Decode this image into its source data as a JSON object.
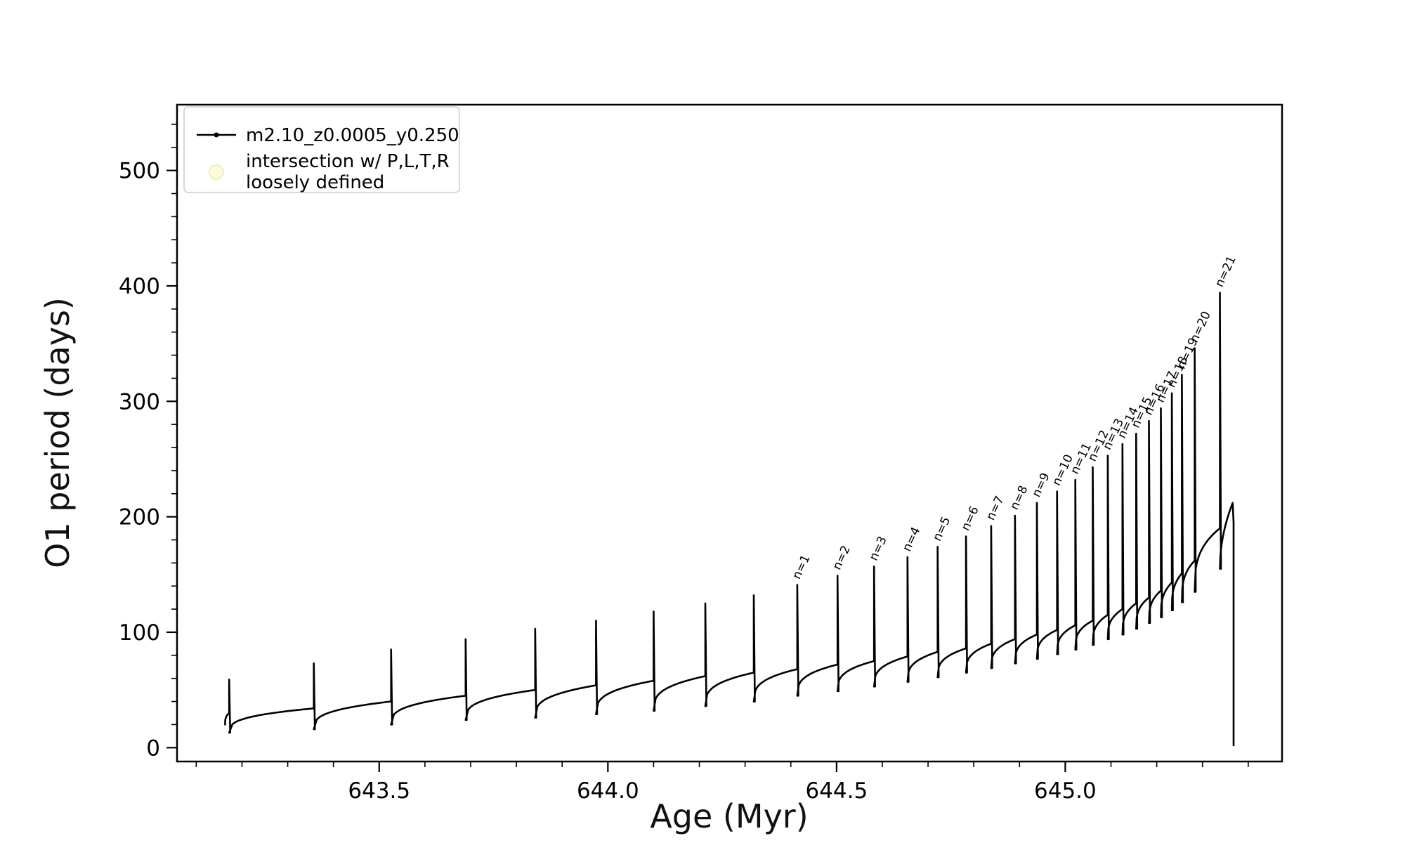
{
  "figure": {
    "background": "#ffffff"
  },
  "chart_data": {
    "type": "line",
    "title": "",
    "xlabel": "Age (Myr)",
    "ylabel": "O1 period (days)",
    "xlim": [
      643.058,
      645.474
    ],
    "ylim": [
      -12,
      557
    ],
    "grid": false,
    "xticks": {
      "major": [
        643.5,
        644.0,
        644.5,
        645.0
      ],
      "labels": [
        "643.5",
        "644.0",
        "644.5",
        "645.0"
      ],
      "minor_step": 0.1
    },
    "yticks": {
      "major": [
        0,
        100,
        200,
        300,
        400,
        500
      ],
      "labels": [
        "0",
        "100",
        "200",
        "300",
        "400",
        "500"
      ],
      "minor_step": 20
    },
    "legend": {
      "position": "upper-left",
      "entries": [
        {
          "label": "m2.10_z0.0005_y0.250",
          "marker": "line-dot",
          "color": "#000000"
        },
        {
          "label_line1": "intersection w/ P,L,T,R",
          "label_line2": "loosely defined",
          "marker": "circle",
          "color": "#fbfbd0"
        }
      ]
    },
    "annotation_rotation_deg": -65,
    "series": [
      {
        "name": "m2.10_z0.0005_y0.250",
        "color": "#000000",
        "style": "line-with-dot-markers",
        "cycles": [
          {
            "start": 643.163,
            "end": 643.172,
            "dip": 20,
            "base": 30,
            "peak": 59,
            "label": ""
          },
          {
            "start": 643.172,
            "end": 643.357,
            "dip": 13,
            "base": 34,
            "peak": 73,
            "label": ""
          },
          {
            "start": 643.357,
            "end": 643.526,
            "dip": 16,
            "base": 40,
            "peak": 85,
            "label": ""
          },
          {
            "start": 643.526,
            "end": 643.689,
            "dip": 20,
            "base": 45,
            "peak": 94,
            "label": ""
          },
          {
            "start": 643.689,
            "end": 643.841,
            "dip": 24,
            "base": 50,
            "peak": 103,
            "label": ""
          },
          {
            "start": 643.841,
            "end": 643.974,
            "dip": 26,
            "base": 54,
            "peak": 110,
            "label": ""
          },
          {
            "start": 643.974,
            "end": 644.1,
            "dip": 29,
            "base": 58,
            "peak": 118,
            "label": ""
          },
          {
            "start": 644.1,
            "end": 644.213,
            "dip": 32,
            "base": 62,
            "peak": 125,
            "label": ""
          },
          {
            "start": 644.213,
            "end": 644.319,
            "dip": 36,
            "base": 65,
            "peak": 132,
            "label": ""
          },
          {
            "start": 644.319,
            "end": 644.414,
            "dip": 40,
            "base": 68,
            "peak": 141,
            "label": "n=1"
          },
          {
            "start": 644.414,
            "end": 644.502,
            "dip": 45,
            "base": 72,
            "peak": 149,
            "label": "n=2"
          },
          {
            "start": 644.502,
            "end": 644.582,
            "dip": 49,
            "base": 75,
            "peak": 157,
            "label": "n=3"
          },
          {
            "start": 644.582,
            "end": 644.655,
            "dip": 53,
            "base": 79,
            "peak": 165,
            "label": "n=4"
          },
          {
            "start": 644.655,
            "end": 644.721,
            "dip": 57,
            "base": 83,
            "peak": 174,
            "label": "n=5"
          },
          {
            "start": 644.721,
            "end": 644.783,
            "dip": 61,
            "base": 86,
            "peak": 183,
            "label": "n=6"
          },
          {
            "start": 644.783,
            "end": 644.838,
            "dip": 65,
            "base": 90,
            "peak": 192,
            "label": "n=7"
          },
          {
            "start": 644.838,
            "end": 644.89,
            "dip": 69,
            "base": 94,
            "peak": 201,
            "label": "n=8"
          },
          {
            "start": 644.89,
            "end": 644.938,
            "dip": 73,
            "base": 98,
            "peak": 212,
            "label": "n=9"
          },
          {
            "start": 644.938,
            "end": 644.982,
            "dip": 77,
            "base": 102,
            "peak": 222,
            "label": "n=10"
          },
          {
            "start": 644.982,
            "end": 645.022,
            "dip": 81,
            "base": 106,
            "peak": 232,
            "label": "n=11"
          },
          {
            "start": 645.022,
            "end": 645.06,
            "dip": 85,
            "base": 110,
            "peak": 243,
            "label": "n=12"
          },
          {
            "start": 645.06,
            "end": 645.093,
            "dip": 89,
            "base": 115,
            "peak": 253,
            "label": "n=13"
          },
          {
            "start": 645.093,
            "end": 645.125,
            "dip": 94,
            "base": 120,
            "peak": 263,
            "label": "n=14"
          },
          {
            "start": 645.125,
            "end": 645.155,
            "dip": 98,
            "base": 125,
            "peak": 272,
            "label": "n=15"
          },
          {
            "start": 645.155,
            "end": 645.183,
            "dip": 103,
            "base": 130,
            "peak": 283,
            "label": "n=16"
          },
          {
            "start": 645.183,
            "end": 645.209,
            "dip": 108,
            "base": 136,
            "peak": 294,
            "label": "n=17"
          },
          {
            "start": 645.209,
            "end": 645.233,
            "dip": 113,
            "base": 143,
            "peak": 307,
            "label": "n=18"
          },
          {
            "start": 645.233,
            "end": 645.255,
            "dip": 119,
            "base": 151,
            "peak": 323,
            "label": "n=19"
          },
          {
            "start": 645.255,
            "end": 645.283,
            "dip": 126,
            "base": 162,
            "peak": 346,
            "label": "n=20"
          },
          {
            "start": 645.283,
            "end": 645.338,
            "dip": 135,
            "base": 190,
            "peak": 394,
            "label": "n=21"
          }
        ],
        "tail": {
          "t0": 645.338,
          "t1": 645.366,
          "lo": 155,
          "hi": 212,
          "hook_down_to": 195,
          "end_drop_to": 2
        }
      }
    ]
  }
}
